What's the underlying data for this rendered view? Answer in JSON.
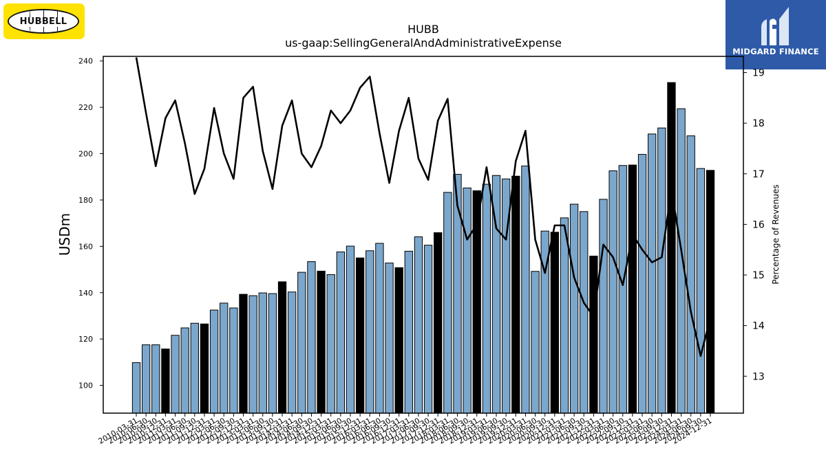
{
  "logos": {
    "left_brand": "HUBBELL",
    "right_brand": "MIDGARD FINANCE"
  },
  "colors": {
    "bar_quarter": "#7ba7cc",
    "bar_year_end": "#000000",
    "bar_edge": "#000000",
    "line": "#000000",
    "left_logo_bg": "#ffe200",
    "right_logo_bg": "#2e5aa8"
  },
  "chart_data": {
    "type": "bar",
    "title": "HUBB",
    "subtitle": "us-gaap:SellingGeneralAndAdministrativeExpense",
    "ylabel": "USDm",
    "y2label": "Percentage of Revenues",
    "ylim": [
      88,
      242
    ],
    "y2lim": [
      12.27,
      19.32
    ],
    "yticks": [
      100,
      120,
      140,
      160,
      180,
      200,
      220,
      240
    ],
    "y2ticks": [
      13,
      14,
      15,
      16,
      17,
      18,
      19
    ],
    "grid": false,
    "categories": [
      "2010-03-31",
      "2010-06-30",
      "2010-09-30",
      "2010-12-31",
      "2011-03-31",
      "2011-06-30",
      "2011-09-30",
      "2011-12-31",
      "2012-03-31",
      "2012-06-30",
      "2012-09-30",
      "2012-12-31",
      "2013-03-31",
      "2013-06-30",
      "2013-09-30",
      "2013-12-31",
      "2014-03-31",
      "2014-06-30",
      "2014-09-30",
      "2014-12-31",
      "2015-03-31",
      "2015-06-30",
      "2015-09-30",
      "2015-12-31",
      "2016-03-31",
      "2016-06-30",
      "2016-09-30",
      "2016-12-31",
      "2017-03-31",
      "2017-06-30",
      "2017-09-30",
      "2017-12-31",
      "2018-03-31",
      "2018-06-30",
      "2018-09-30",
      "2018-12-31",
      "2019-03-31",
      "2019-06-30",
      "2019-09-30",
      "2019-12-31",
      "2020-03-31",
      "2020-06-30",
      "2020-09-30",
      "2020-12-31",
      "2021-03-31",
      "2021-06-30",
      "2021-09-30",
      "2021-12-31",
      "2022-03-31",
      "2022-06-30",
      "2022-09-30",
      "2022-12-31",
      "2023-03-31",
      "2023-06-30",
      "2023-09-30",
      "2023-12-31",
      "2024-03-31",
      "2024-06-30",
      "2024-09-30",
      "2024-12-31"
    ],
    "series": [
      {
        "kind": "bar",
        "axis": "left",
        "values": [
          109.8,
          117.5,
          117.5,
          115.7,
          121.6,
          124.8,
          126.8,
          126.5,
          132.5,
          135.5,
          133.4,
          139.3,
          138.7,
          139.9,
          139.6,
          144.7,
          140.3,
          148.8,
          153.4,
          149.3,
          147.8,
          157.6,
          160.1,
          155.0,
          158.1,
          161.3,
          152.8,
          150.8,
          157.9,
          164.1,
          160.5,
          165.9,
          183.3,
          191.1,
          185.2,
          184.0,
          186.8,
          190.6,
          189.1,
          190.3,
          194.7,
          149.2,
          166.6,
          166.1,
          172.3,
          178.2,
          175.0,
          155.8,
          180.3,
          192.6,
          194.9,
          195.1,
          199.7,
          208.5,
          211.1,
          230.7,
          219.4,
          207.7,
          193.6,
          192.8
        ]
      },
      {
        "kind": "line",
        "axis": "right",
        "values": [
          19.3,
          18.2,
          17.15,
          18.1,
          18.45,
          17.6,
          16.6,
          17.1,
          18.3,
          17.4,
          16.9,
          18.5,
          18.72,
          17.45,
          16.7,
          17.95,
          18.45,
          17.4,
          17.13,
          17.55,
          18.25,
          18.0,
          18.25,
          18.7,
          18.92,
          17.8,
          16.82,
          17.85,
          18.5,
          17.3,
          16.88,
          18.05,
          18.48,
          16.37,
          15.7,
          16.0,
          17.13,
          15.92,
          15.7,
          17.25,
          17.85,
          15.7,
          15.04,
          15.98,
          15.98,
          14.95,
          14.45,
          14.18,
          15.6,
          15.35,
          14.8,
          15.8,
          15.5,
          15.25,
          15.35,
          16.68,
          15.5,
          14.27,
          13.4,
          14.15
        ]
      }
    ]
  }
}
